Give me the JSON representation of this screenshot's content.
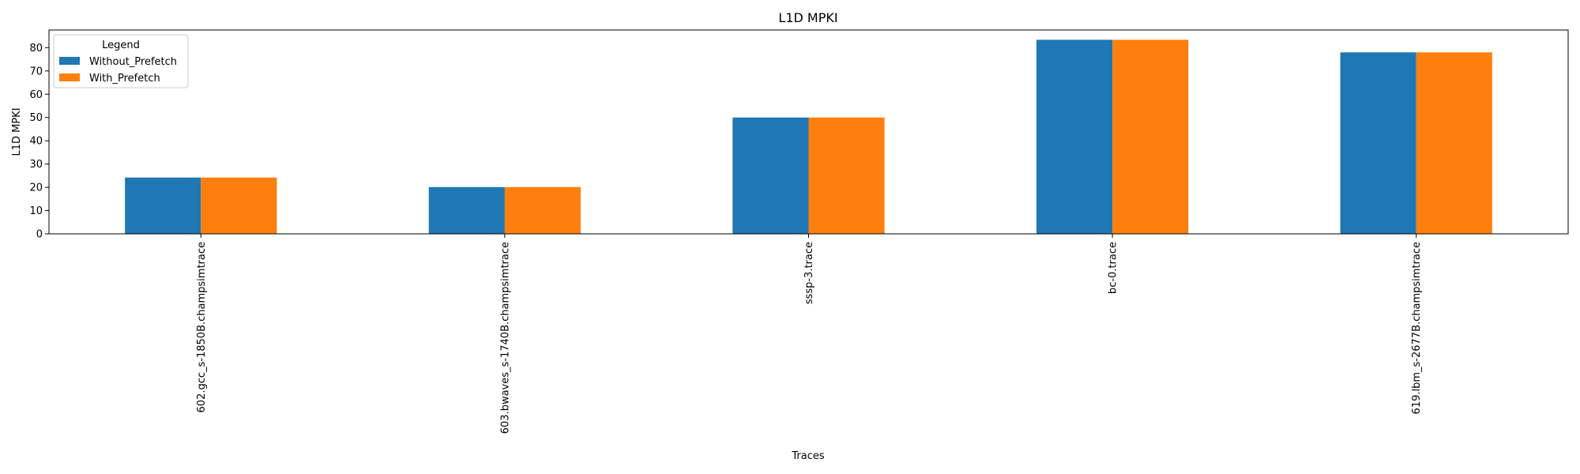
{
  "chart_data": {
    "type": "bar",
    "title": "L1D MPKI",
    "xlabel": "Traces",
    "ylabel": "L1D MPKI",
    "categories": [
      "602.gcc_s-1850B.champsimtrace",
      "603.bwaves_s-1740B.champsimtrace",
      "sssp-3.trace",
      "bc-0.trace",
      "619.lbm_s-2677B.champsimtrace"
    ],
    "series": [
      {
        "name": "Without_Prefetch",
        "values": [
          24.2,
          20.1,
          50.0,
          83.4,
          78.0
        ],
        "color": "#1f77b4"
      },
      {
        "name": "With_Prefetch",
        "values": [
          24.2,
          20.1,
          50.0,
          83.4,
          78.0
        ],
        "color": "#ff7f0e"
      }
    ],
    "ylim": [
      0,
      87.6
    ],
    "yticks": [
      0,
      10,
      20,
      30,
      40,
      50,
      60,
      70,
      80
    ],
    "grid": false,
    "legend": {
      "title": "Legend",
      "position": "top-left"
    }
  }
}
